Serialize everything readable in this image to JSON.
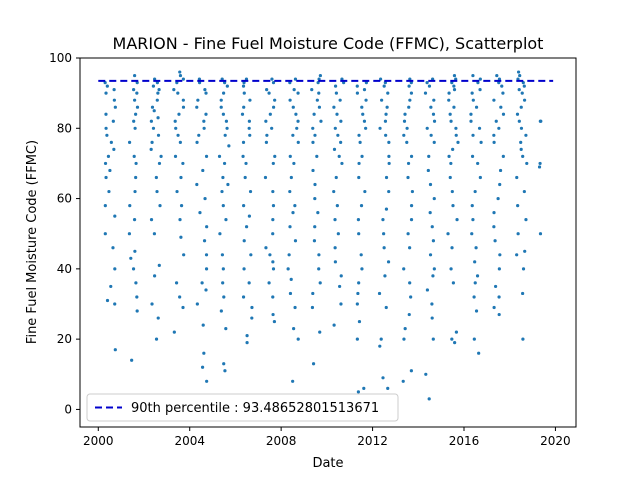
{
  "chart_data": {
    "type": "scatter",
    "title": "MARION - Fine Fuel Moisture Code (FFMC), Scatterplot",
    "xlabel": "Date",
    "ylabel": "Fine Fuel Moisture Code (FFMC)",
    "xlim": [
      1999.2,
      2020.9
    ],
    "ylim": [
      -5,
      100
    ],
    "x_ticks": [
      2000,
      2004,
      2008,
      2012,
      2016,
      2020
    ],
    "x_tick_labels": [
      "2000",
      "2004",
      "2008",
      "2012",
      "2016",
      "2020"
    ],
    "y_ticks": [
      0,
      20,
      40,
      60,
      80,
      100
    ],
    "y_tick_labels": [
      "0",
      "20",
      "40",
      "60",
      "80",
      "100"
    ],
    "grid": false,
    "legend": {
      "placement": "lower-left",
      "entries": [
        {
          "label": "90th percentile : 93.48652801513671",
          "style": "dashed-line",
          "color": "#0000cc"
        }
      ]
    },
    "reference_line": {
      "name": "90th percentile",
      "y": 93.48652801513671,
      "x_range": [
        2000.0,
        2019.9
      ],
      "color": "#0000cc"
    },
    "series": [
      {
        "marker_color": "#1f77b4",
        "season_groups": [
          {
            "year": 2000,
            "x_start": 2000.3,
            "x_end": 2000.75,
            "y_points": [
              93,
              92,
              91,
              90,
              88,
              86,
              84,
              82,
              80,
              78,
              76,
              74,
              72,
              70,
              68,
              66,
              62,
              58,
              55,
              50,
              46,
              40,
              35,
              31,
              30,
              17
            ]
          },
          {
            "year": 2001,
            "x_start": 2001.3,
            "x_end": 2001.75,
            "y_points": [
              95,
              93,
              91,
              90,
              88,
              86,
              84,
              82,
              80,
              76,
              72,
              70,
              66,
              62,
              58,
              54,
              50,
              45,
              43,
              40,
              36,
              32,
              28,
              14
            ]
          },
          {
            "year": 2002,
            "x_start": 2002.3,
            "x_end": 2002.75,
            "y_points": [
              94,
              93,
              92,
              91,
              90,
              88,
              86,
              85,
              83,
              82,
              80,
              78,
              76,
              74,
              72,
              70,
              66,
              62,
              58,
              54,
              50,
              41,
              38,
              30,
              26,
              20
            ]
          },
          {
            "year": 2003,
            "x_start": 2003.3,
            "x_end": 2003.75,
            "y_points": [
              96,
              95,
              94,
              93,
              91,
              90,
              88,
              86,
              84,
              82,
              80,
              78,
              76,
              72,
              70,
              66,
              62,
              58,
              54,
              49,
              44,
              36,
              32,
              29,
              22
            ]
          },
          {
            "year": 2004,
            "x_start": 2004.3,
            "x_end": 2004.75,
            "y_points": [
              94,
              93,
              91,
              90,
              88,
              86,
              84,
              82,
              80,
              78,
              76,
              72,
              68,
              64,
              60,
              56,
              52,
              48,
              44,
              40,
              36,
              34,
              30,
              24,
              16,
              12,
              8
            ]
          },
          {
            "year": 2005,
            "x_start": 2005.3,
            "x_end": 2005.75,
            "y_points": [
              94,
              93,
              92,
              90,
              88,
              86,
              84,
              82,
              80,
              78,
              75,
              72,
              70,
              66,
              64,
              62,
              58,
              54,
              50,
              44,
              40,
              36,
              32,
              28,
              23,
              13,
              11
            ]
          },
          {
            "year": 2006,
            "x_start": 2006.3,
            "x_end": 2006.75,
            "y_points": [
              94,
              93,
              92,
              90,
              88,
              86,
              84,
              82,
              80,
              78,
              76,
              72,
              70,
              66,
              62,
              58,
              55,
              52,
              48,
              44,
              40,
              36,
              32,
              29,
              26,
              21,
              19
            ]
          },
          {
            "year": 2007,
            "x_start": 2007.3,
            "x_end": 2007.75,
            "y_points": [
              94,
              93,
              91,
              90,
              88,
              86,
              84,
              82,
              80,
              78,
              76,
              72,
              70,
              66,
              62,
              58,
              54,
              50,
              46,
              44,
              42,
              40,
              36,
              32,
              27,
              25
            ]
          },
          {
            "year": 2008,
            "x_start": 2008.3,
            "x_end": 2008.75,
            "y_points": [
              94,
              93,
              91,
              90,
              88,
              86,
              84,
              82,
              80,
              78,
              76,
              72,
              70,
              66,
              62,
              58,
              56,
              52,
              48,
              44,
              40,
              37,
              33,
              29,
              23,
              20,
              8
            ]
          },
          {
            "year": 2009,
            "x_start": 2009.3,
            "x_end": 2009.75,
            "y_points": [
              95,
              94,
              93,
              91,
              90,
              88,
              86,
              84,
              82,
              80,
              78,
              76,
              72,
              68,
              64,
              60,
              56,
              52,
              48,
              44,
              40,
              36,
              33,
              29,
              22,
              13
            ]
          },
          {
            "year": 2010,
            "x_start": 2010.3,
            "x_end": 2010.75,
            "y_points": [
              94,
              93,
              92,
              90,
              88,
              86,
              84,
              82,
              80,
              78,
              76,
              74,
              72,
              70,
              66,
              62,
              58,
              54,
              50,
              46,
              42,
              38,
              35,
              30,
              24
            ]
          },
          {
            "year": 2011,
            "x_start": 2011.3,
            "x_end": 2011.75,
            "y_points": [
              93,
              92,
              91,
              90,
              88,
              86,
              84,
              82,
              80,
              78,
              76,
              72,
              70,
              66,
              62,
              58,
              54,
              50,
              44,
              40,
              36,
              33,
              30,
              25,
              20,
              6,
              5
            ]
          },
          {
            "year": 2012,
            "x_start": 2012.3,
            "x_end": 2012.75,
            "y_points": [
              94,
              93,
              92,
              90,
              88,
              86,
              84,
              82,
              80,
              78,
              76,
              72,
              70,
              66,
              62,
              57,
              54,
              50,
              46,
              42,
              38,
              33,
              29,
              20,
              18,
              9,
              6,
              3
            ]
          },
          {
            "year": 2013,
            "x_start": 2013.3,
            "x_end": 2013.75,
            "y_points": [
              94,
              93,
              92,
              90,
              88,
              86,
              84,
              82,
              80,
              78,
              76,
              72,
              70,
              66,
              62,
              58,
              54,
              50,
              46,
              40,
              36,
              32,
              27,
              23,
              20,
              11,
              8
            ]
          },
          {
            "year": 2014,
            "x_start": 2014.3,
            "x_end": 2014.75,
            "y_points": [
              94,
              93,
              92,
              90,
              88,
              86,
              84,
              82,
              80,
              78,
              76,
              72,
              68,
              64,
              60,
              56,
              52,
              48,
              44,
              40,
              38,
              34,
              30,
              26,
              20,
              10,
              3
            ]
          },
          {
            "year": 2015,
            "x_start": 2015.3,
            "x_end": 2015.75,
            "y_points": [
              95,
              94,
              93,
              92,
              91,
              90,
              88,
              86,
              84,
              82,
              80,
              78,
              76,
              74,
              72,
              70,
              66,
              62,
              58,
              54,
              50,
              46,
              40,
              36,
              22,
              20,
              19
            ]
          },
          {
            "year": 2016,
            "x_start": 2016.3,
            "x_end": 2016.75,
            "y_points": [
              95,
              94,
              93,
              91,
              90,
              88,
              86,
              84,
              82,
              80,
              78,
              76,
              72,
              70,
              66,
              62,
              58,
              54,
              50,
              46,
              42,
              38,
              36,
              32,
              28,
              20,
              16
            ]
          },
          {
            "year": 2017,
            "x_start": 2017.3,
            "x_end": 2017.75,
            "y_points": [
              95,
              94,
              93,
              92,
              90,
              88,
              86,
              84,
              82,
              80,
              78,
              76,
              72,
              68,
              64,
              60,
              56,
              52,
              48,
              44,
              40,
              35,
              32,
              29,
              27
            ]
          },
          {
            "year": 2018,
            "x_start": 2018.3,
            "x_end": 2018.75,
            "y_points": [
              96,
              95,
              94,
              93,
              92,
              91,
              90,
              88,
              86,
              84,
              82,
              80,
              78,
              76,
              74,
              72,
              70,
              66,
              62,
              58,
              54,
              50,
              45,
              44,
              40,
              33,
              20
            ]
          },
          {
            "year": 2019,
            "x_start": 2019.3,
            "x_end": 2019.4,
            "y_points": [
              82,
              82,
              70,
              69,
              50
            ]
          }
        ]
      }
    ]
  }
}
